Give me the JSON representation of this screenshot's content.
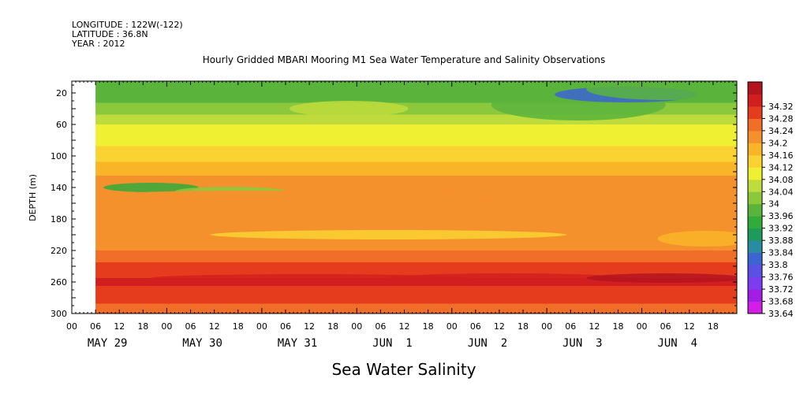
{
  "header": {
    "longitude": "LONGITUDE : 122W(-122)",
    "latitude": "LATITUDE : 36.8N",
    "year": "YEAR : 2012"
  },
  "chart_data": {
    "type": "heatmap",
    "title": "Hourly Gridded MBARI Mooring M1 Sea Water Temperature and Salinity Observations",
    "xlabel": "",
    "ylabel": "DEPTH (m)",
    "footer_label": "Sea Water Salinity",
    "x_hour_ticks": [
      "00",
      "06",
      "12",
      "18",
      "00",
      "06",
      "12",
      "18",
      "00",
      "06",
      "12",
      "18",
      "00",
      "06",
      "12",
      "18",
      "00",
      "06",
      "12",
      "18",
      "00",
      "06",
      "12",
      "18",
      "00",
      "06",
      "12",
      "18"
    ],
    "x_day_labels": [
      "MAY 29",
      "MAY 30",
      "MAY 31",
      "JUN  1",
      "JUN  2",
      "JUN  3",
      "JUN  4"
    ],
    "y_ticks": [
      20,
      60,
      100,
      140,
      180,
      220,
      260,
      300
    ],
    "ylim": [
      300,
      5
    ],
    "x_range_hours": [
      0,
      168
    ],
    "data_start_hour": 6,
    "colorbar": {
      "levels": [
        33.64,
        33.68,
        33.72,
        33.76,
        33.8,
        33.84,
        33.88,
        33.92,
        33.96,
        34,
        34.04,
        34.08,
        34.12,
        34.16,
        34.2,
        34.24,
        34.28,
        34.32
      ],
      "labels": [
        "33.64",
        "33.68",
        "33.72",
        "33.76",
        "33.8",
        "33.84",
        "33.88",
        "33.92",
        "33.96",
        "34",
        "34.04",
        "34.08",
        "34.12",
        "34.16",
        "34.2",
        "34.24",
        "34.28",
        "34.32"
      ],
      "colors": [
        "#d21ee6",
        "#a21ee6",
        "#7c3cf0",
        "#5a50e6",
        "#3c64d2",
        "#2a8ca0",
        "#1e9a5a",
        "#32aa3c",
        "#5ab43c",
        "#8cc83c",
        "#bedc3c",
        "#f0f032",
        "#fad232",
        "#fab428",
        "#f5912d",
        "#f06e28",
        "#e63c1e",
        "#d21e1e",
        "#b4141e"
      ]
    },
    "depth_profile": [
      {
        "depth": 10,
        "value": 33.93
      },
      {
        "depth": 20,
        "value": 33.93
      },
      {
        "depth": 40,
        "value": 33.98
      },
      {
        "depth": 60,
        "value": 34.04
      },
      {
        "depth": 80,
        "value": 34.07
      },
      {
        "depth": 100,
        "value": 34.1
      },
      {
        "depth": 120,
        "value": 34.15
      },
      {
        "depth": 140,
        "value": 34.19
      },
      {
        "depth": 160,
        "value": 34.18
      },
      {
        "depth": 180,
        "value": 34.17
      },
      {
        "depth": 200,
        "value": 34.16
      },
      {
        "depth": 220,
        "value": 34.2
      },
      {
        "depth": 240,
        "value": 34.25
      },
      {
        "depth": 260,
        "value": 34.29
      },
      {
        "depth": 280,
        "value": 34.25
      },
      {
        "depth": 300,
        "value": 34.22
      }
    ]
  }
}
